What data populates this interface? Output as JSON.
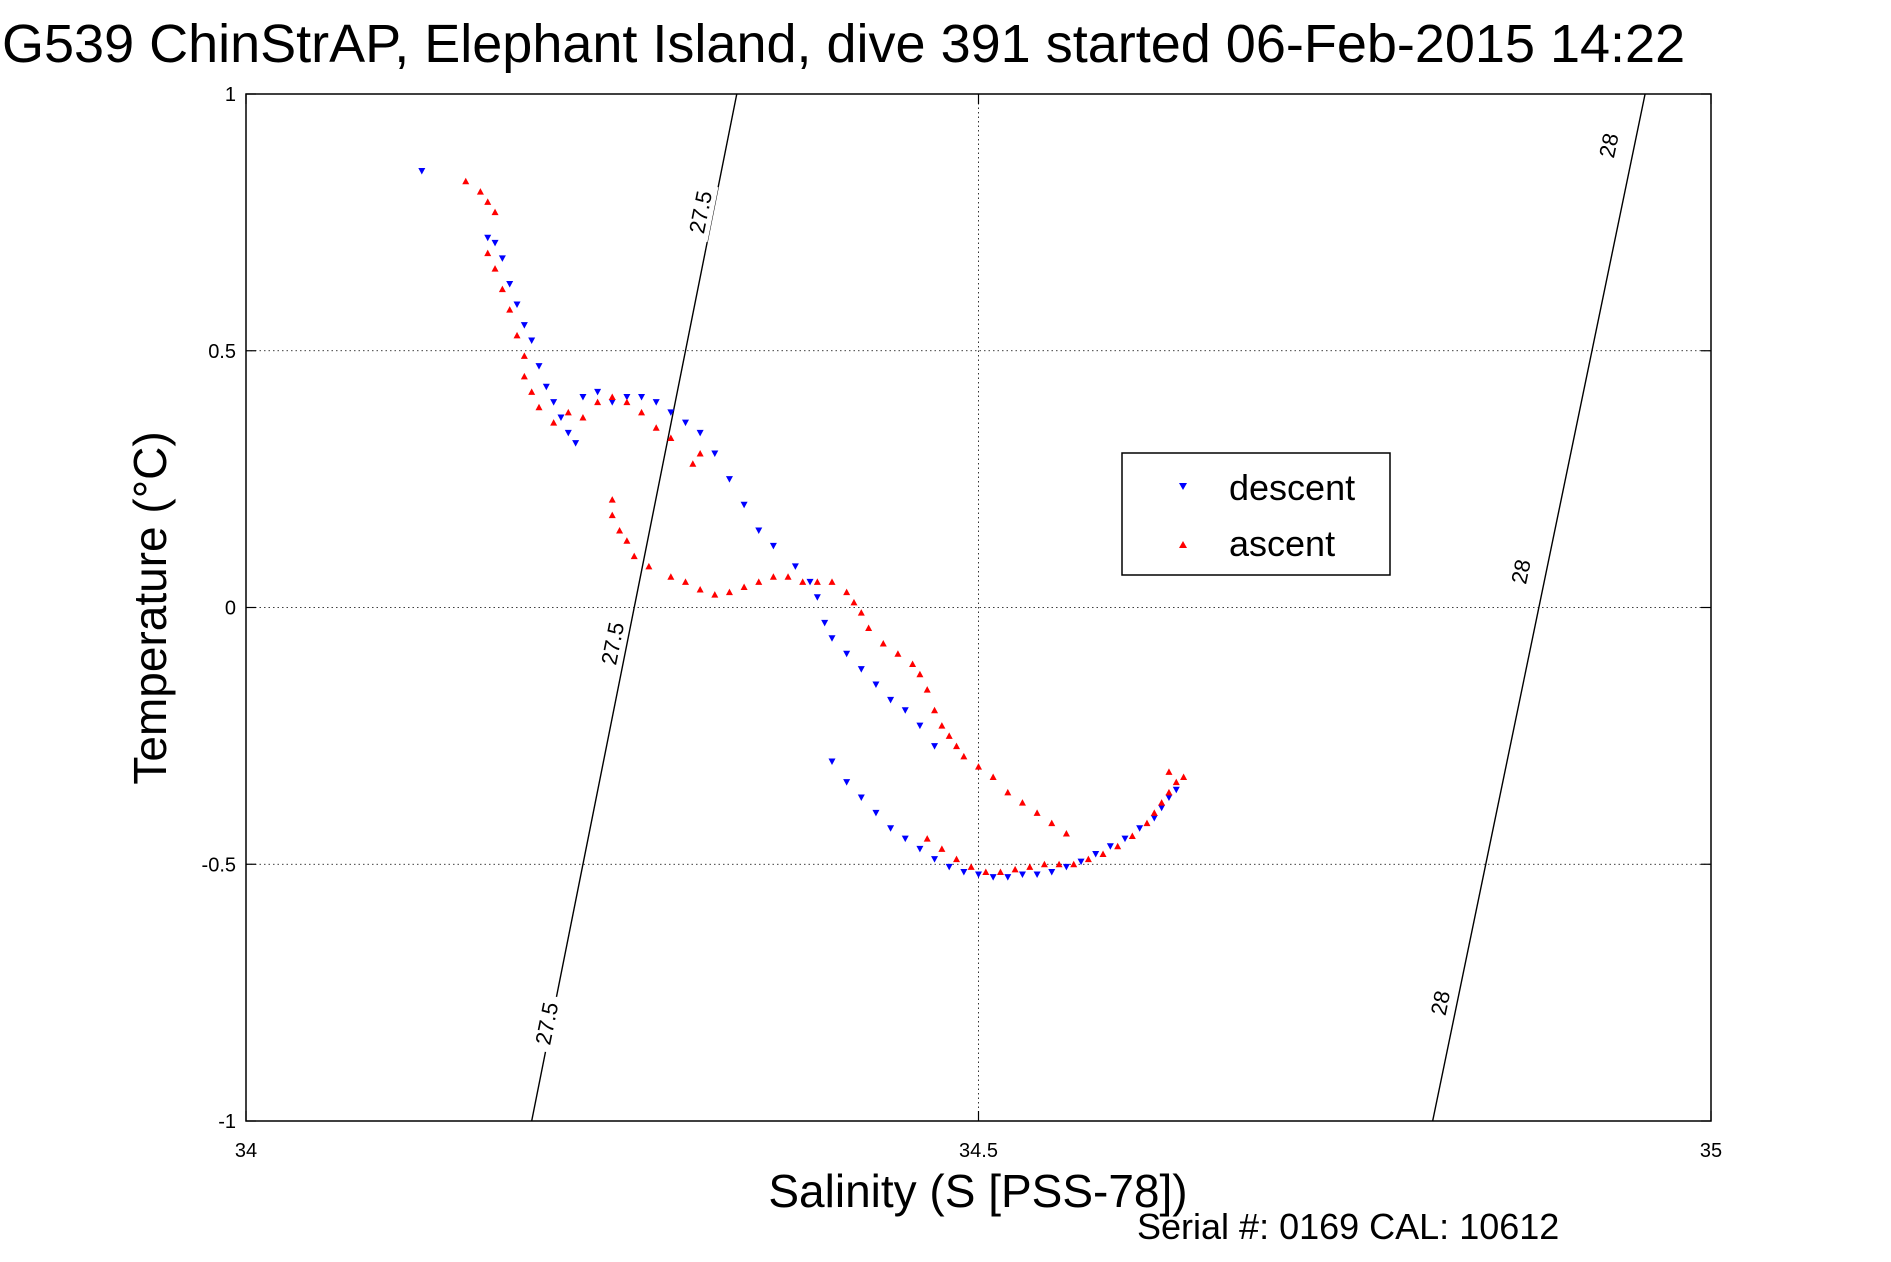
{
  "title": "G539 ChinStrAP, Elephant Island, dive 391 started 06-Feb-2015 14:22",
  "footer": "Serial #: 0169 CAL: 10612",
  "colors": {
    "descent": "#0000ff",
    "ascent": "#ff0000",
    "contour": "#000000",
    "grid": "#000000"
  },
  "chart_data": {
    "type": "scatter",
    "xlabel": "Salinity (S [PSS-78])",
    "ylabel": "Temperature (°C)",
    "xlim": [
      34,
      35
    ],
    "ylim": [
      -1,
      1
    ],
    "xticks": [
      34,
      34.5,
      35
    ],
    "xtick_labels": [
      "34",
      "34.5",
      "35"
    ],
    "yticks": [
      -1,
      -0.5,
      0,
      0.5,
      1
    ],
    "ytick_labels": [
      "-1",
      "-0.5",
      "0",
      "0.5",
      "1"
    ],
    "grid": true,
    "legend_position": "right",
    "series": [
      {
        "name": "descent",
        "marker": "triangle-down",
        "points": [
          [
            34.12,
            0.85
          ],
          [
            34.165,
            0.72
          ],
          [
            34.17,
            0.71
          ],
          [
            34.175,
            0.68
          ],
          [
            34.18,
            0.63
          ],
          [
            34.185,
            0.59
          ],
          [
            34.19,
            0.55
          ],
          [
            34.195,
            0.52
          ],
          [
            34.2,
            0.47
          ],
          [
            34.205,
            0.43
          ],
          [
            34.21,
            0.4
          ],
          [
            34.215,
            0.37
          ],
          [
            34.22,
            0.34
          ],
          [
            34.225,
            0.32
          ],
          [
            34.23,
            0.41
          ],
          [
            34.24,
            0.42
          ],
          [
            34.25,
            0.4
          ],
          [
            34.26,
            0.41
          ],
          [
            34.27,
            0.41
          ],
          [
            34.28,
            0.4
          ],
          [
            34.29,
            0.38
          ],
          [
            34.3,
            0.36
          ],
          [
            34.31,
            0.34
          ],
          [
            34.32,
            0.3
          ],
          [
            34.33,
            0.25
          ],
          [
            34.34,
            0.2
          ],
          [
            34.35,
            0.15
          ],
          [
            34.36,
            0.12
          ],
          [
            34.375,
            0.08
          ],
          [
            34.385,
            0.05
          ],
          [
            34.39,
            0.02
          ],
          [
            34.395,
            -0.03
          ],
          [
            34.4,
            -0.06
          ],
          [
            34.41,
            -0.09
          ],
          [
            34.42,
            -0.12
          ],
          [
            34.43,
            -0.15
          ],
          [
            34.44,
            -0.18
          ],
          [
            34.45,
            -0.2
          ],
          [
            34.46,
            -0.23
          ],
          [
            34.47,
            -0.27
          ],
          [
            34.4,
            -0.3
          ],
          [
            34.41,
            -0.34
          ],
          [
            34.42,
            -0.37
          ],
          [
            34.43,
            -0.4
          ],
          [
            34.44,
            -0.43
          ],
          [
            34.45,
            -0.45
          ],
          [
            34.46,
            -0.47
          ],
          [
            34.47,
            -0.49
          ],
          [
            34.48,
            -0.505
          ],
          [
            34.49,
            -0.515
          ],
          [
            34.5,
            -0.52
          ],
          [
            34.51,
            -0.525
          ],
          [
            34.52,
            -0.525
          ],
          [
            34.53,
            -0.52
          ],
          [
            34.54,
            -0.52
          ],
          [
            34.55,
            -0.515
          ],
          [
            34.56,
            -0.505
          ],
          [
            34.57,
            -0.495
          ],
          [
            34.58,
            -0.48
          ],
          [
            34.59,
            -0.465
          ],
          [
            34.6,
            -0.45
          ],
          [
            34.61,
            -0.43
          ],
          [
            34.62,
            -0.41
          ],
          [
            34.625,
            -0.39
          ],
          [
            34.63,
            -0.37
          ],
          [
            34.635,
            -0.355
          ]
        ]
      },
      {
        "name": "ascent",
        "marker": "triangle-up",
        "points": [
          [
            34.15,
            0.83
          ],
          [
            34.16,
            0.81
          ],
          [
            34.165,
            0.79
          ],
          [
            34.17,
            0.77
          ],
          [
            34.165,
            0.69
          ],
          [
            34.17,
            0.66
          ],
          [
            34.175,
            0.62
          ],
          [
            34.18,
            0.58
          ],
          [
            34.185,
            0.53
          ],
          [
            34.19,
            0.49
          ],
          [
            34.19,
            0.45
          ],
          [
            34.195,
            0.42
          ],
          [
            34.2,
            0.39
          ],
          [
            34.21,
            0.36
          ],
          [
            34.22,
            0.38
          ],
          [
            34.23,
            0.37
          ],
          [
            34.24,
            0.4
          ],
          [
            34.25,
            0.41
          ],
          [
            34.26,
            0.4
          ],
          [
            34.27,
            0.38
          ],
          [
            34.28,
            0.35
          ],
          [
            34.29,
            0.33
          ],
          [
            34.31,
            0.3
          ],
          [
            34.305,
            0.28
          ],
          [
            34.25,
            0.21
          ],
          [
            34.25,
            0.18
          ],
          [
            34.255,
            0.15
          ],
          [
            34.26,
            0.13
          ],
          [
            34.265,
            0.1
          ],
          [
            34.275,
            0.08
          ],
          [
            34.29,
            0.06
          ],
          [
            34.3,
            0.05
          ],
          [
            34.31,
            0.035
          ],
          [
            34.32,
            0.025
          ],
          [
            34.33,
            0.03
          ],
          [
            34.34,
            0.04
          ],
          [
            34.35,
            0.05
          ],
          [
            34.36,
            0.06
          ],
          [
            34.37,
            0.06
          ],
          [
            34.38,
            0.05
          ],
          [
            34.39,
            0.05
          ],
          [
            34.4,
            0.05
          ],
          [
            34.41,
            0.03
          ],
          [
            34.415,
            0.01
          ],
          [
            34.42,
            -0.01
          ],
          [
            34.425,
            -0.04
          ],
          [
            34.435,
            -0.07
          ],
          [
            34.445,
            -0.09
          ],
          [
            34.455,
            -0.11
          ],
          [
            34.46,
            -0.13
          ],
          [
            34.465,
            -0.16
          ],
          [
            34.47,
            -0.2
          ],
          [
            34.475,
            -0.23
          ],
          [
            34.48,
            -0.25
          ],
          [
            34.485,
            -0.27
          ],
          [
            34.49,
            -0.29
          ],
          [
            34.5,
            -0.31
          ],
          [
            34.51,
            -0.33
          ],
          [
            34.52,
            -0.36
          ],
          [
            34.53,
            -0.38
          ],
          [
            34.54,
            -0.4
          ],
          [
            34.55,
            -0.42
          ],
          [
            34.56,
            -0.44
          ],
          [
            34.465,
            -0.45
          ],
          [
            34.475,
            -0.47
          ],
          [
            34.485,
            -0.49
          ],
          [
            34.495,
            -0.505
          ],
          [
            34.505,
            -0.515
          ],
          [
            34.515,
            -0.515
          ],
          [
            34.525,
            -0.51
          ],
          [
            34.535,
            -0.505
          ],
          [
            34.545,
            -0.5
          ],
          [
            34.555,
            -0.5
          ],
          [
            34.565,
            -0.5
          ],
          [
            34.575,
            -0.49
          ],
          [
            34.585,
            -0.48
          ],
          [
            34.595,
            -0.465
          ],
          [
            34.605,
            -0.445
          ],
          [
            34.615,
            -0.42
          ],
          [
            34.62,
            -0.4
          ],
          [
            34.625,
            -0.38
          ],
          [
            34.63,
            -0.36
          ],
          [
            34.635,
            -0.34
          ],
          [
            34.64,
            -0.33
          ],
          [
            34.63,
            -0.32
          ]
        ]
      }
    ],
    "contours": [
      {
        "label": "27.5",
        "points": [
          [
            34.195,
            -1
          ],
          [
            34.335,
            1
          ]
        ],
        "label_positions": [
          [
            34.205,
            -0.81
          ],
          [
            34.25,
            -0.07
          ],
          [
            34.31,
            0.77
          ]
        ]
      },
      {
        "label": "28",
        "points": [
          [
            34.81,
            -1
          ],
          [
            34.955,
            1
          ]
        ],
        "label_positions": [
          [
            34.815,
            -0.77
          ],
          [
            34.87,
            0.07
          ],
          [
            34.93,
            0.9
          ]
        ]
      }
    ],
    "legend": [
      "descent",
      "ascent"
    ]
  }
}
